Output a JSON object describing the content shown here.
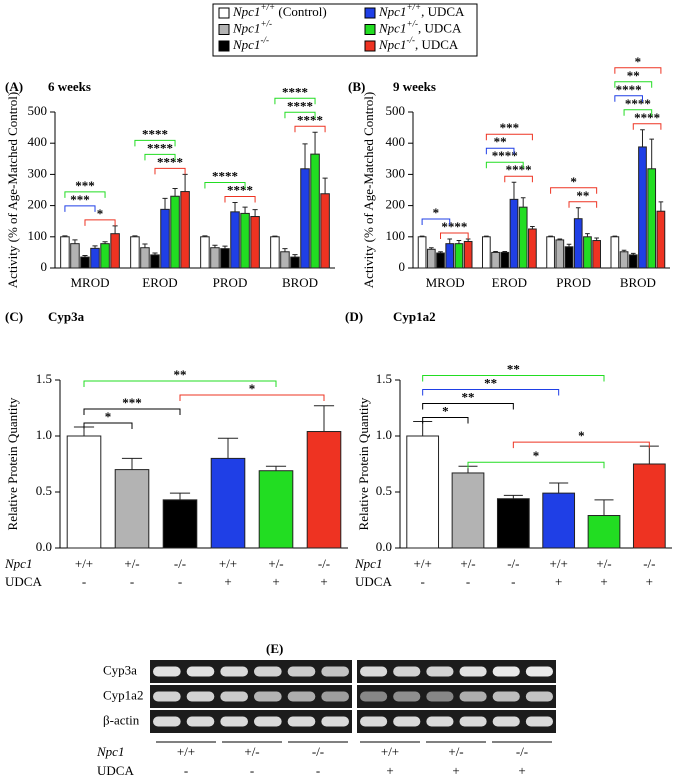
{
  "chart_data": [
    {
      "type": "grouped-bar",
      "label": "(A)",
      "title": "6 weeks",
      "y_label": "Activity (% of Age-Matched Control)",
      "categories": [
        "MROD",
        "EROD",
        "PROD",
        "BROD"
      ],
      "series": [
        {
          "name": "Npc1+/+ (Control)",
          "color": "#ffffff",
          "values": [
            100,
            100,
            100,
            100
          ],
          "errors": [
            3,
            3,
            3,
            2
          ]
        },
        {
          "name": "Npc1+/-",
          "color": "#b3b3b3",
          "values": [
            78,
            65,
            65,
            52
          ],
          "errors": [
            12,
            12,
            8,
            10
          ]
        },
        {
          "name": "Npc1-/-",
          "color": "#000000",
          "values": [
            35,
            42,
            62,
            35
          ],
          "errors": [
            5,
            6,
            8,
            8
          ]
        },
        {
          "name": "Npc1+/+, UDCA",
          "color": "#1f3fe6",
          "values": [
            63,
            188,
            180,
            318
          ],
          "errors": [
            8,
            35,
            30,
            80
          ]
        },
        {
          "name": "Npc1+/-, UDCA",
          "color": "#22dd22",
          "values": [
            78,
            230,
            175,
            365
          ],
          "errors": [
            6,
            25,
            20,
            70
          ]
        },
        {
          "name": "Npc1-/-, UDCA",
          "color": "#ee3322",
          "values": [
            110,
            245,
            165,
            238
          ],
          "errors": [
            25,
            55,
            22,
            50
          ]
        }
      ],
      "ylim": [
        0,
        500
      ],
      "yticks": [
        0,
        100,
        200,
        300,
        400,
        500
      ],
      "brackets": [
        {
          "text": "*",
          "color": "#ee3322",
          "category": 0,
          "from": 2,
          "to": 5
        },
        {
          "text": "***",
          "color": "#1f3fe6",
          "category": 0,
          "from": 0,
          "to": 3
        },
        {
          "text": "***",
          "color": "#22dd22",
          "category": 0,
          "from": 0,
          "to": 4
        },
        {
          "text": "****",
          "color": "#ee3322",
          "category": 1,
          "from": 2,
          "to": 5
        },
        {
          "text": "****",
          "color": "#22dd22",
          "category": 1,
          "from": 1,
          "to": 4
        },
        {
          "text": "****",
          "color": "#22dd22",
          "category": 1,
          "from": 0,
          "to": 4
        },
        {
          "text": "****",
          "color": "#ee3322",
          "category": 2,
          "from": 2,
          "to": 5
        },
        {
          "text": "****",
          "color": "#22dd22",
          "category": 2,
          "from": 0,
          "to": 4
        },
        {
          "text": "****",
          "color": "#ee3322",
          "category": 3,
          "from": 2,
          "to": 5
        },
        {
          "text": "****",
          "color": "#22dd22",
          "category": 3,
          "from": 1,
          "to": 4
        },
        {
          "text": "****",
          "color": "#22dd22",
          "category": 3,
          "from": 0,
          "to": 4
        }
      ]
    },
    {
      "type": "grouped-bar",
      "label": "(B)",
      "title": "9 weeks",
      "y_label": "Activity (% of Age-Matched Control)",
      "categories": [
        "MROD",
        "EROD",
        "PROD",
        "BROD"
      ],
      "series": [
        {
          "values": [
            100,
            100,
            100,
            100
          ],
          "errors": [
            2,
            2,
            2,
            2
          ]
        },
        {
          "values": [
            60,
            50,
            90,
            52
          ],
          "errors": [
            5,
            3,
            3,
            5
          ]
        },
        {
          "values": [
            48,
            50,
            68,
            42
          ],
          "errors": [
            4,
            3,
            8,
            5
          ]
        },
        {
          "values": [
            78,
            220,
            158,
            388
          ],
          "errors": [
            15,
            55,
            35,
            55
          ]
        },
        {
          "values": [
            78,
            195,
            100,
            318
          ],
          "errors": [
            10,
            30,
            10,
            95
          ]
        },
        {
          "values": [
            85,
            125,
            88,
            182
          ],
          "errors": [
            8,
            8,
            8,
            30
          ]
        }
      ],
      "ylim": [
        0,
        500
      ],
      "yticks": [
        0,
        100,
        200,
        300,
        400,
        500
      ],
      "brackets": [
        {
          "text": "****",
          "color": "#ee3322",
          "category": 0,
          "from": 2,
          "to": 5
        },
        {
          "text": "*",
          "color": "#1f3fe6",
          "category": 0,
          "from": 0,
          "to": 3
        },
        {
          "text": "****",
          "color": "#ee3322",
          "category": 1,
          "from": 2,
          "to": 5
        },
        {
          "text": "****",
          "color": "#22dd22",
          "category": 1,
          "from": 0,
          "to": 4
        },
        {
          "text": "**",
          "color": "#1f3fe6",
          "category": 1,
          "from": 0,
          "to": 3
        },
        {
          "text": "***",
          "color": "#ee3322",
          "category": 1,
          "from": 0,
          "to": 5
        },
        {
          "text": "**",
          "color": "#ee3322",
          "category": 2,
          "from": 2,
          "to": 5
        },
        {
          "text": "*",
          "color": "#ee3322",
          "category": 2,
          "from": 0,
          "to": 5
        },
        {
          "text": "****",
          "color": "#ee3322",
          "category": 3,
          "from": 2,
          "to": 5
        },
        {
          "text": "****",
          "color": "#22dd22",
          "category": 3,
          "from": 1,
          "to": 4
        },
        {
          "text": "****",
          "color": "#1f3fe6",
          "category": 3,
          "from": 0,
          "to": 3
        },
        {
          "text": "**",
          "color": "#22dd22",
          "category": 3,
          "from": 0,
          "to": 4
        },
        {
          "text": "*",
          "color": "#ee3322",
          "category": 3,
          "from": 0,
          "to": 5
        }
      ]
    },
    {
      "type": "bar",
      "label": "(C)",
      "title": "Cyp3a",
      "y_label": "Relative Protein Quantity",
      "row_labels": [
        "Npc1",
        "UDCA"
      ],
      "categories": [
        "+/+",
        "+/-",
        "-/-",
        "+/+",
        "+/-",
        "-/-"
      ],
      "udca": [
        "-",
        "-",
        "-",
        "+",
        "+",
        "+"
      ],
      "values": [
        1.0,
        0.7,
        0.43,
        0.8,
        0.69,
        1.04
      ],
      "errors": [
        0.08,
        0.1,
        0.06,
        0.18,
        0.04,
        0.23
      ],
      "colors": [
        "#ffffff",
        "#b3b3b3",
        "#000000",
        "#1f3fe6",
        "#22dd22",
        "#ee3322"
      ],
      "ylim": [
        0,
        1.5
      ],
      "yticks": [
        {
          "value": 0,
          "label": "0.0"
        },
        0.5,
        {
          "value": 1,
          "label": "1.0"
        },
        1.5
      ],
      "brackets": [
        {
          "text": "*",
          "color": "#000000",
          "from": 0,
          "to": 1
        },
        {
          "text": "***",
          "color": "#000000",
          "from": 0,
          "to": 2
        },
        {
          "text": "*",
          "color": "#ee3322",
          "from": 2,
          "to": 5
        },
        {
          "text": "**",
          "color": "#22dd22",
          "from": 0,
          "to": 4
        }
      ]
    },
    {
      "type": "bar",
      "label": "(D)",
      "title": "Cyp1a2",
      "y_label": "Relative Protein Quantity",
      "row_labels": [
        "Npc1",
        "UDCA"
      ],
      "categories": [
        "+/+",
        "+/-",
        "-/-",
        "+/+",
        "+/-",
        "-/-"
      ],
      "udca": [
        "-",
        "-",
        "-",
        "+",
        "+",
        "+"
      ],
      "values": [
        1.0,
        0.67,
        0.44,
        0.49,
        0.29,
        0.75
      ],
      "errors": [
        0.13,
        0.06,
        0.03,
        0.09,
        0.14,
        0.16
      ],
      "colors": [
        "#ffffff",
        "#b3b3b3",
        "#000000",
        "#1f3fe6",
        "#22dd22",
        "#ee3322"
      ],
      "ylim": [
        0,
        1.5
      ],
      "yticks": [
        {
          "value": 0,
          "label": "0.0"
        },
        0.5,
        {
          "value": 1,
          "label": "1.0"
        },
        1.5
      ],
      "brackets": [
        {
          "text": "*",
          "color": "#22dd22",
          "from": 1,
          "to": 4
        },
        {
          "text": "*",
          "color": "#ee3322",
          "from": 2,
          "to": 5
        },
        {
          "text": "*",
          "color": "#000000",
          "from": 0,
          "to": 1
        },
        {
          "text": "**",
          "color": "#000000",
          "from": 0,
          "to": 2
        },
        {
          "text": "**",
          "color": "#1f3fe6",
          "from": 0,
          "to": 3
        },
        {
          "text": "**",
          "color": "#22dd22",
          "from": 0,
          "to": 4
        }
      ]
    }
  ],
  "blot": {
    "label": "(E)",
    "rows": [
      "Cyp3a",
      "Cyp1a2",
      "β-actin"
    ],
    "row_labels": [
      "Npc1",
      "UDCA"
    ],
    "genotypes": [
      "+/+",
      "+/-",
      "-/-",
      "+/+",
      "+/-",
      "-/-"
    ],
    "udca": [
      "-",
      "-",
      "-",
      "+",
      "+",
      "+"
    ]
  }
}
